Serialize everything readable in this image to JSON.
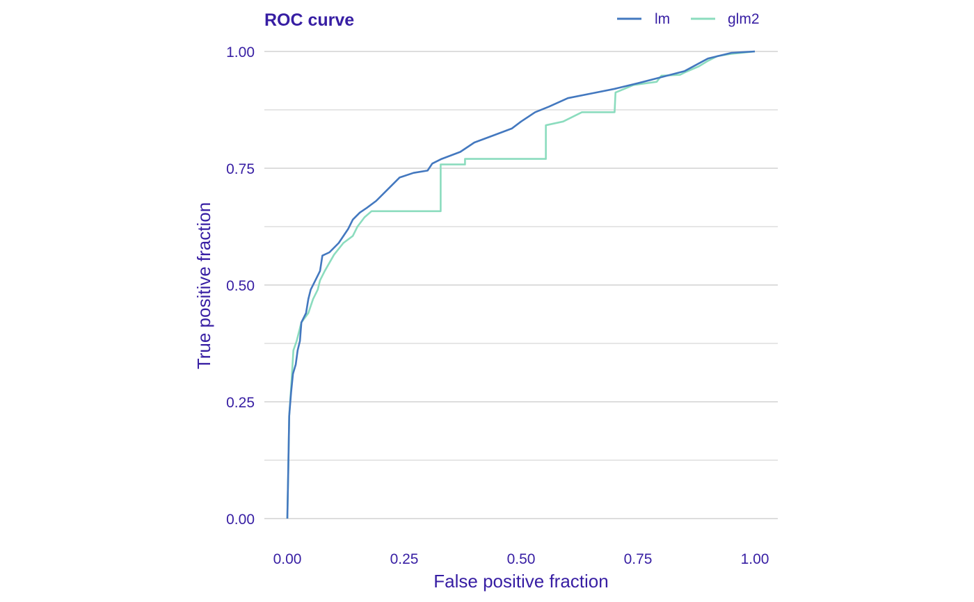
{
  "colors": {
    "text": "#371ea3",
    "grid": "#dddddd",
    "lm": "#4378bf",
    "glm2": "#8bdcbe",
    "background": "#ffffff"
  },
  "chart_data": {
    "type": "line",
    "title": "ROC curve",
    "xlabel": "False positive fraction",
    "ylabel": "True positive fraction",
    "xlim": [
      0,
      1
    ],
    "ylim": [
      0,
      1
    ],
    "xticks": [
      "0.00",
      "0.25",
      "0.50",
      "0.75",
      "1.00"
    ],
    "yticks": [
      "0.00",
      "0.25",
      "0.50",
      "0.75",
      "1.00"
    ],
    "grid": true,
    "legend_position": "top-right",
    "series": [
      {
        "name": "lm",
        "color_key": "lm",
        "points": [
          [
            0.0,
            0.0
          ],
          [
            0.002,
            0.1
          ],
          [
            0.004,
            0.22
          ],
          [
            0.008,
            0.27
          ],
          [
            0.012,
            0.31
          ],
          [
            0.018,
            0.33
          ],
          [
            0.022,
            0.36
          ],
          [
            0.027,
            0.38
          ],
          [
            0.03,
            0.42
          ],
          [
            0.04,
            0.44
          ],
          [
            0.045,
            0.47
          ],
          [
            0.05,
            0.49
          ],
          [
            0.06,
            0.51
          ],
          [
            0.07,
            0.53
          ],
          [
            0.075,
            0.563
          ],
          [
            0.09,
            0.57
          ],
          [
            0.11,
            0.59
          ],
          [
            0.13,
            0.62
          ],
          [
            0.14,
            0.64
          ],
          [
            0.155,
            0.655
          ],
          [
            0.17,
            0.665
          ],
          [
            0.19,
            0.68
          ],
          [
            0.22,
            0.71
          ],
          [
            0.24,
            0.73
          ],
          [
            0.27,
            0.74
          ],
          [
            0.3,
            0.745
          ],
          [
            0.31,
            0.76
          ],
          [
            0.33,
            0.77
          ],
          [
            0.37,
            0.785
          ],
          [
            0.4,
            0.805
          ],
          [
            0.44,
            0.82
          ],
          [
            0.48,
            0.835
          ],
          [
            0.5,
            0.85
          ],
          [
            0.53,
            0.87
          ],
          [
            0.56,
            0.882
          ],
          [
            0.6,
            0.9
          ],
          [
            0.65,
            0.91
          ],
          [
            0.7,
            0.92
          ],
          [
            0.75,
            0.932
          ],
          [
            0.8,
            0.945
          ],
          [
            0.85,
            0.958
          ],
          [
            0.9,
            0.985
          ],
          [
            0.95,
            0.997
          ],
          [
            1.0,
            1.0
          ]
        ]
      },
      {
        "name": "glm2",
        "color_key": "glm2",
        "points": [
          [
            0.0,
            0.0
          ],
          [
            0.002,
            0.1
          ],
          [
            0.004,
            0.22
          ],
          [
            0.008,
            0.28
          ],
          [
            0.01,
            0.31
          ],
          [
            0.013,
            0.36
          ],
          [
            0.02,
            0.38
          ],
          [
            0.03,
            0.42
          ],
          [
            0.045,
            0.44
          ],
          [
            0.055,
            0.47
          ],
          [
            0.065,
            0.49
          ],
          [
            0.07,
            0.51
          ],
          [
            0.08,
            0.53
          ],
          [
            0.1,
            0.565
          ],
          [
            0.12,
            0.59
          ],
          [
            0.14,
            0.605
          ],
          [
            0.15,
            0.625
          ],
          [
            0.165,
            0.645
          ],
          [
            0.18,
            0.658
          ],
          [
            0.328,
            0.658
          ],
          [
            0.328,
            0.758
          ],
          [
            0.38,
            0.758
          ],
          [
            0.38,
            0.77
          ],
          [
            0.553,
            0.77
          ],
          [
            0.553,
            0.842
          ],
          [
            0.59,
            0.85
          ],
          [
            0.63,
            0.87
          ],
          [
            0.7,
            0.87
          ],
          [
            0.702,
            0.912
          ],
          [
            0.74,
            0.928
          ],
          [
            0.79,
            0.935
          ],
          [
            0.8,
            0.948
          ],
          [
            0.84,
            0.95
          ],
          [
            0.85,
            0.955
          ],
          [
            0.88,
            0.968
          ],
          [
            0.9,
            0.98
          ],
          [
            0.92,
            0.99
          ],
          [
            0.95,
            0.995
          ],
          [
            1.0,
            1.0
          ]
        ]
      }
    ]
  }
}
